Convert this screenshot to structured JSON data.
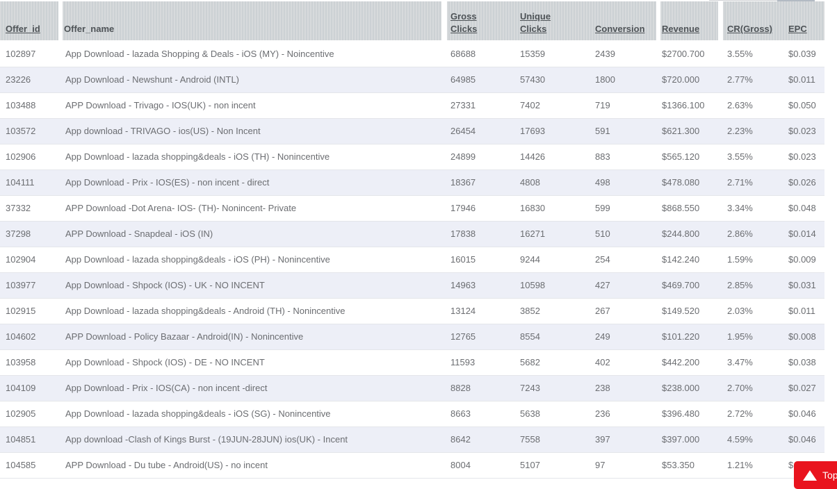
{
  "colors": {
    "accent_red": "#e9141e",
    "header_stripe_light": "#d7dadc",
    "header_stripe_dark": "#ccd1d4",
    "header_text": "#4e5357",
    "row_alt_bg": "#edeff7",
    "row_text": "#6b6d71"
  },
  "back_to_top": {
    "label": "Top",
    "icon": "up-triangle-icon"
  },
  "table": {
    "columns": [
      {
        "key": "offer_id",
        "label": "Offer_id"
      },
      {
        "key": "offer_name",
        "label": "Offer_name"
      },
      {
        "key": "gross_clicks",
        "label": "Gross Clicks"
      },
      {
        "key": "unique_clicks",
        "label": "Unique Clicks"
      },
      {
        "key": "conversion",
        "label": "Conversion"
      },
      {
        "key": "revenue",
        "label": "Revenue"
      },
      {
        "key": "cr_gross",
        "label": "CR(Gross)"
      },
      {
        "key": "epc",
        "label": "EPC"
      }
    ],
    "rows": [
      {
        "offer_id": "102897",
        "offer_name": "App Download - lazada Shopping & Deals - iOS (MY) - Noincentive",
        "gross_clicks": "68688",
        "unique_clicks": "15359",
        "conversion": "2439",
        "revenue": "$2700.700",
        "cr_gross": "3.55%",
        "epc": "$0.039"
      },
      {
        "offer_id": "23226",
        "offer_name": "App Download - Newshunt - Android (INTL)",
        "gross_clicks": "64985",
        "unique_clicks": "57430",
        "conversion": "1800",
        "revenue": "$720.000",
        "cr_gross": "2.77%",
        "epc": "$0.011"
      },
      {
        "offer_id": "103488",
        "offer_name": "APP Download - Trivago - IOS(UK) - non incent",
        "gross_clicks": "27331",
        "unique_clicks": "7402",
        "conversion": "719",
        "revenue": "$1366.100",
        "cr_gross": "2.63%",
        "epc": "$0.050"
      },
      {
        "offer_id": "103572",
        "offer_name": "App download - TRIVAGO - ios(US) - Non Incent",
        "gross_clicks": "26454",
        "unique_clicks": "17693",
        "conversion": "591",
        "revenue": "$621.300",
        "cr_gross": "2.23%",
        "epc": "$0.023"
      },
      {
        "offer_id": "102906",
        "offer_name": "App Download - lazada shopping&deals - iOS (TH) - Nonincentive",
        "gross_clicks": "24899",
        "unique_clicks": "14426",
        "conversion": "883",
        "revenue": "$565.120",
        "cr_gross": "3.55%",
        "epc": "$0.023"
      },
      {
        "offer_id": "104111",
        "offer_name": "App Download - Prix - IOS(ES) - non incent - direct",
        "gross_clicks": "18367",
        "unique_clicks": "4808",
        "conversion": "498",
        "revenue": "$478.080",
        "cr_gross": "2.71%",
        "epc": "$0.026"
      },
      {
        "offer_id": "37332",
        "offer_name": "APP Download -Dot Arena- IOS- (TH)- Nonincent- Private",
        "gross_clicks": "17946",
        "unique_clicks": "16830",
        "conversion": "599",
        "revenue": "$868.550",
        "cr_gross": "3.34%",
        "epc": "$0.048"
      },
      {
        "offer_id": "37298",
        "offer_name": "APP Download - Snapdeal - iOS (IN)",
        "gross_clicks": "17838",
        "unique_clicks": "16271",
        "conversion": "510",
        "revenue": "$244.800",
        "cr_gross": "2.86%",
        "epc": "$0.014"
      },
      {
        "offer_id": "102904",
        "offer_name": "App Download - lazada shopping&deals - iOS (PH) - Nonincentive",
        "gross_clicks": "16015",
        "unique_clicks": "9244",
        "conversion": "254",
        "revenue": "$142.240",
        "cr_gross": "1.59%",
        "epc": "$0.009"
      },
      {
        "offer_id": "103977",
        "offer_name": "App Download - Shpock (IOS) - UK - NO INCENT",
        "gross_clicks": "14963",
        "unique_clicks": "10598",
        "conversion": "427",
        "revenue": "$469.700",
        "cr_gross": "2.85%",
        "epc": "$0.031"
      },
      {
        "offer_id": "102915",
        "offer_name": "App Download - lazada shopping&deals - Android (TH) - Nonincentive",
        "gross_clicks": "13124",
        "unique_clicks": "3852",
        "conversion": "267",
        "revenue": "$149.520",
        "cr_gross": "2.03%",
        "epc": "$0.011"
      },
      {
        "offer_id": "104602",
        "offer_name": "APP Download - Policy Bazaar - Android(IN) - Nonincentive",
        "gross_clicks": "12765",
        "unique_clicks": "8554",
        "conversion": "249",
        "revenue": "$101.220",
        "cr_gross": "1.95%",
        "epc": "$0.008"
      },
      {
        "offer_id": "103958",
        "offer_name": "App Download - Shpock (IOS) - DE - NO INCENT",
        "gross_clicks": "11593",
        "unique_clicks": "5682",
        "conversion": "402",
        "revenue": "$442.200",
        "cr_gross": "3.47%",
        "epc": "$0.038"
      },
      {
        "offer_id": "104109",
        "offer_name": "App Download - Prix - IOS(CA) - non incent -direct",
        "gross_clicks": "8828",
        "unique_clicks": "7243",
        "conversion": "238",
        "revenue": "$238.000",
        "cr_gross": "2.70%",
        "epc": "$0.027"
      },
      {
        "offer_id": "102905",
        "offer_name": "App Download - lazada shopping&deals - iOS (SG) - Nonincentive",
        "gross_clicks": "8663",
        "unique_clicks": "5638",
        "conversion": "236",
        "revenue": "$396.480",
        "cr_gross": "2.72%",
        "epc": "$0.046"
      },
      {
        "offer_id": "104851",
        "offer_name": "App download -Clash of Kings Burst - (19JUN-28JUN) ios(UK) - Incent",
        "gross_clicks": "8642",
        "unique_clicks": "7558",
        "conversion": "397",
        "revenue": "$397.000",
        "cr_gross": "4.59%",
        "epc": "$0.046"
      },
      {
        "offer_id": "104585",
        "offer_name": "APP Download - Du tube - Android(US) - no incent",
        "gross_clicks": "8004",
        "unique_clicks": "5107",
        "conversion": "97",
        "revenue": "$53.350",
        "cr_gross": "1.21%",
        "epc": "$"
      }
    ]
  }
}
